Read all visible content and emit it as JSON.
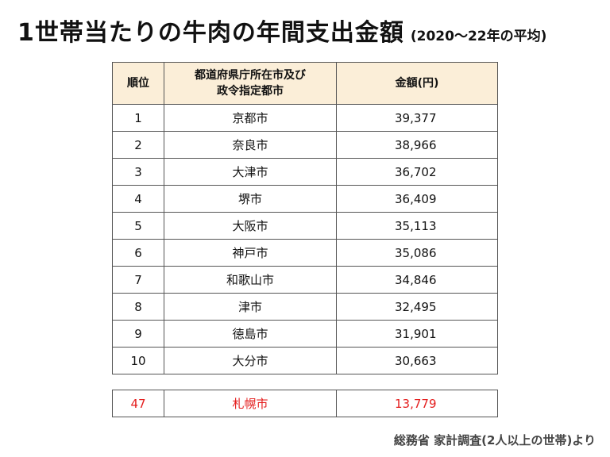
{
  "title": {
    "main": "1世帯当たりの牛肉の年間支出金額",
    "sub": "(2020〜22年の平均)"
  },
  "table": {
    "headers": {
      "rank": "順位",
      "city_line1": "都道府県庁所在市及び",
      "city_line2": "政令指定都市",
      "amount": "金額(円)"
    },
    "rows": [
      {
        "rank": "1",
        "city": "京都市",
        "amount": "39,377"
      },
      {
        "rank": "2",
        "city": "奈良市",
        "amount": "38,966"
      },
      {
        "rank": "3",
        "city": "大津市",
        "amount": "36,702"
      },
      {
        "rank": "4",
        "city": "堺市",
        "amount": "36,409"
      },
      {
        "rank": "5",
        "city": "大阪市",
        "amount": "35,113"
      },
      {
        "rank": "6",
        "city": "神戸市",
        "amount": "35,086"
      },
      {
        "rank": "7",
        "city": "和歌山市",
        "amount": "34,846"
      },
      {
        "rank": "8",
        "city": "津市",
        "amount": "32,495"
      },
      {
        "rank": "9",
        "city": "徳島市",
        "amount": "31,901"
      },
      {
        "rank": "10",
        "city": "大分市",
        "amount": "30,663"
      }
    ],
    "highlight": {
      "rank": "47",
      "city": "札幌市",
      "amount": "13,779"
    }
  },
  "source": "総務省 家計調査(2人以上の世帯)より",
  "colors": {
    "header_bg": "#fbeed8",
    "highlight_text": "#e41d1d"
  }
}
